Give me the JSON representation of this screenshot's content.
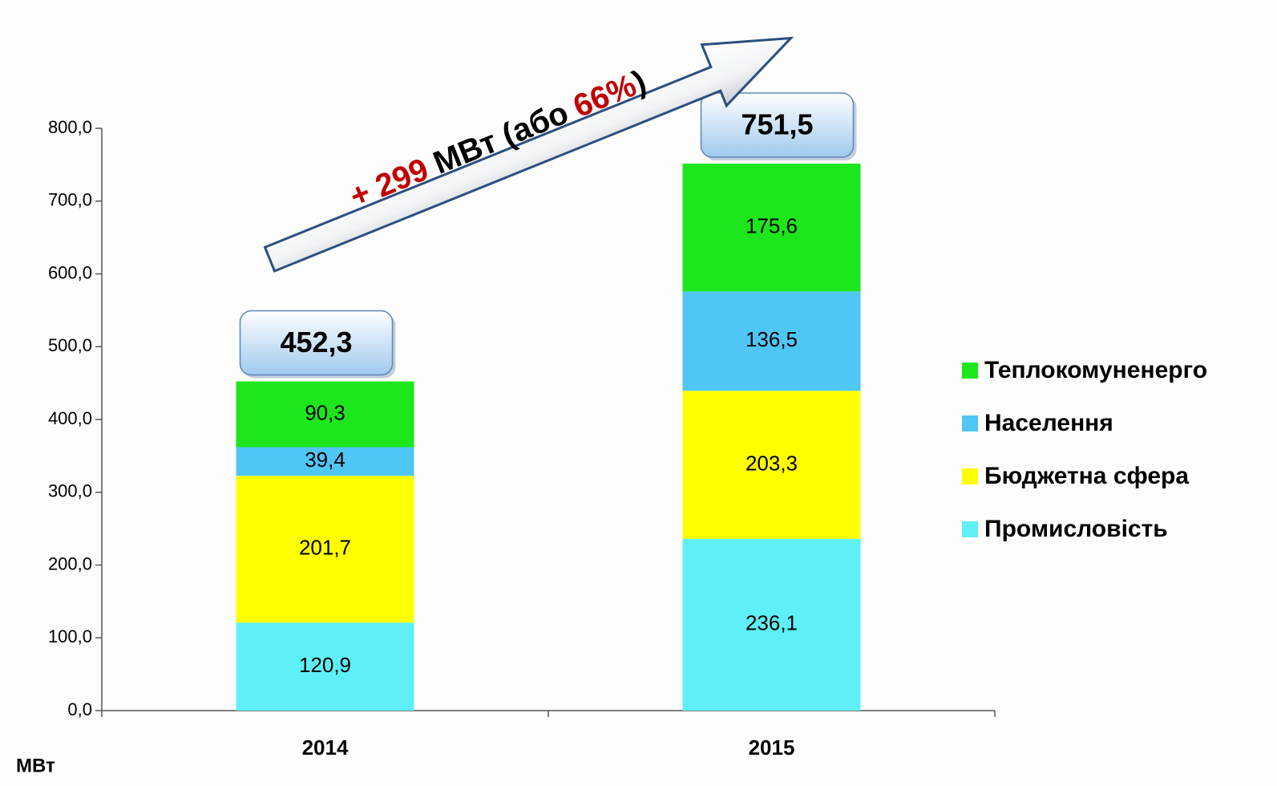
{
  "chart_data": {
    "type": "stacked_bar",
    "categories": [
      "2014",
      "2015"
    ],
    "series": [
      {
        "name": "Промисловість",
        "color": "#5ef0f6",
        "values": [
          120.9,
          236.1
        ],
        "value_labels": [
          "120,9",
          "236,1"
        ]
      },
      {
        "name": "Бюджетна сфера",
        "color": "#ffff00",
        "values": [
          201.7,
          203.3
        ],
        "value_labels": [
          "201,7",
          "203,3"
        ]
      },
      {
        "name": "Населення",
        "color": "#4fc6f4",
        "values": [
          39.4,
          136.5
        ],
        "value_labels": [
          "39,4",
          "136,5"
        ]
      },
      {
        "name": "Теплокомуненерго",
        "color": "#1de61d",
        "values": [
          90.3,
          175.6
        ],
        "value_labels": [
          "90,3",
          "175,6"
        ]
      }
    ],
    "totals": {
      "values": [
        452.3,
        751.5
      ],
      "value_labels": [
        "452,3",
        "751,5"
      ]
    },
    "ylim": [
      0,
      800
    ],
    "yticks": [
      {
        "value": 0,
        "label": "0,0"
      },
      {
        "value": 100,
        "label": "100,0"
      },
      {
        "value": 200,
        "label": "200,0"
      },
      {
        "value": 300,
        "label": "300,0"
      },
      {
        "value": 400,
        "label": "400,0"
      },
      {
        "value": 500,
        "label": "500,0"
      },
      {
        "value": 600,
        "label": "600,0"
      },
      {
        "value": 700,
        "label": "700,0"
      },
      {
        "value": 800,
        "label": "800,0"
      }
    ],
    "y_axis_label": "МВт",
    "annotation": {
      "parts": [
        "+ 299",
        " МВт (або ",
        "66%",
        ")"
      ],
      "colors": [
        "#c00000",
        "#000000",
        "#c00000",
        "#000000"
      ]
    },
    "legend": "right"
  }
}
